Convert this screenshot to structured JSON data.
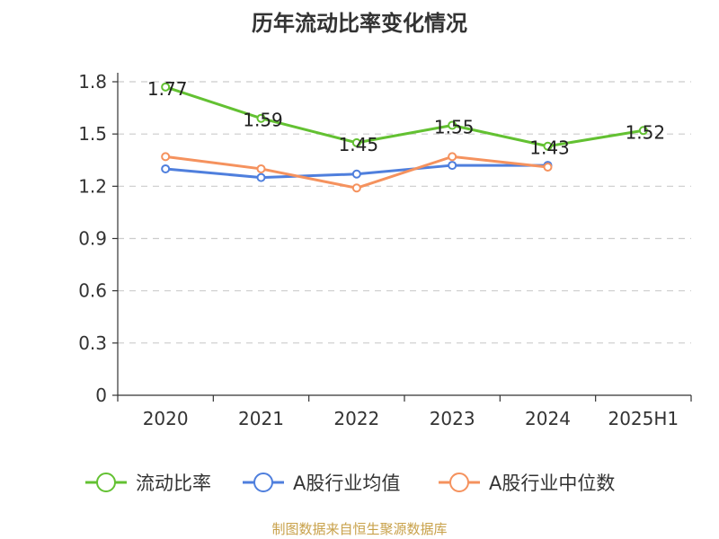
{
  "chart_data": {
    "type": "line",
    "title": "历年流动比率变化情况",
    "categories": [
      "2020",
      "2021",
      "2022",
      "2023",
      "2024",
      "2025H1"
    ],
    "ylim": [
      0,
      1.8
    ],
    "yticks": [
      0,
      0.3,
      0.6,
      0.9,
      1.2,
      1.5,
      1.8
    ],
    "ytick_labels": [
      "0",
      "0.3",
      "0.6",
      "0.9",
      "1.2",
      "1.5",
      "1.8"
    ],
    "grid": true,
    "legend_position": "bottom",
    "series": [
      {
        "name": "流动比率",
        "color": "#63c132",
        "values": [
          1.77,
          1.59,
          1.45,
          1.55,
          1.43,
          1.52
        ],
        "labels": [
          "1.77",
          "1.59",
          "1.45",
          "1.55",
          "1.43",
          "1.52"
        ],
        "show_labels": true
      },
      {
        "name": "A股行业均值",
        "color": "#4f7fdd",
        "values": [
          1.3,
          1.25,
          1.27,
          1.32,
          1.32,
          null
        ],
        "show_labels": false
      },
      {
        "name": "A股行业中位数",
        "color": "#f5925e",
        "values": [
          1.37,
          1.3,
          1.19,
          1.37,
          1.31,
          null
        ],
        "show_labels": false
      }
    ],
    "source": "制图数据来自恒生聚源数据库",
    "source_color": "#c8a14a"
  }
}
